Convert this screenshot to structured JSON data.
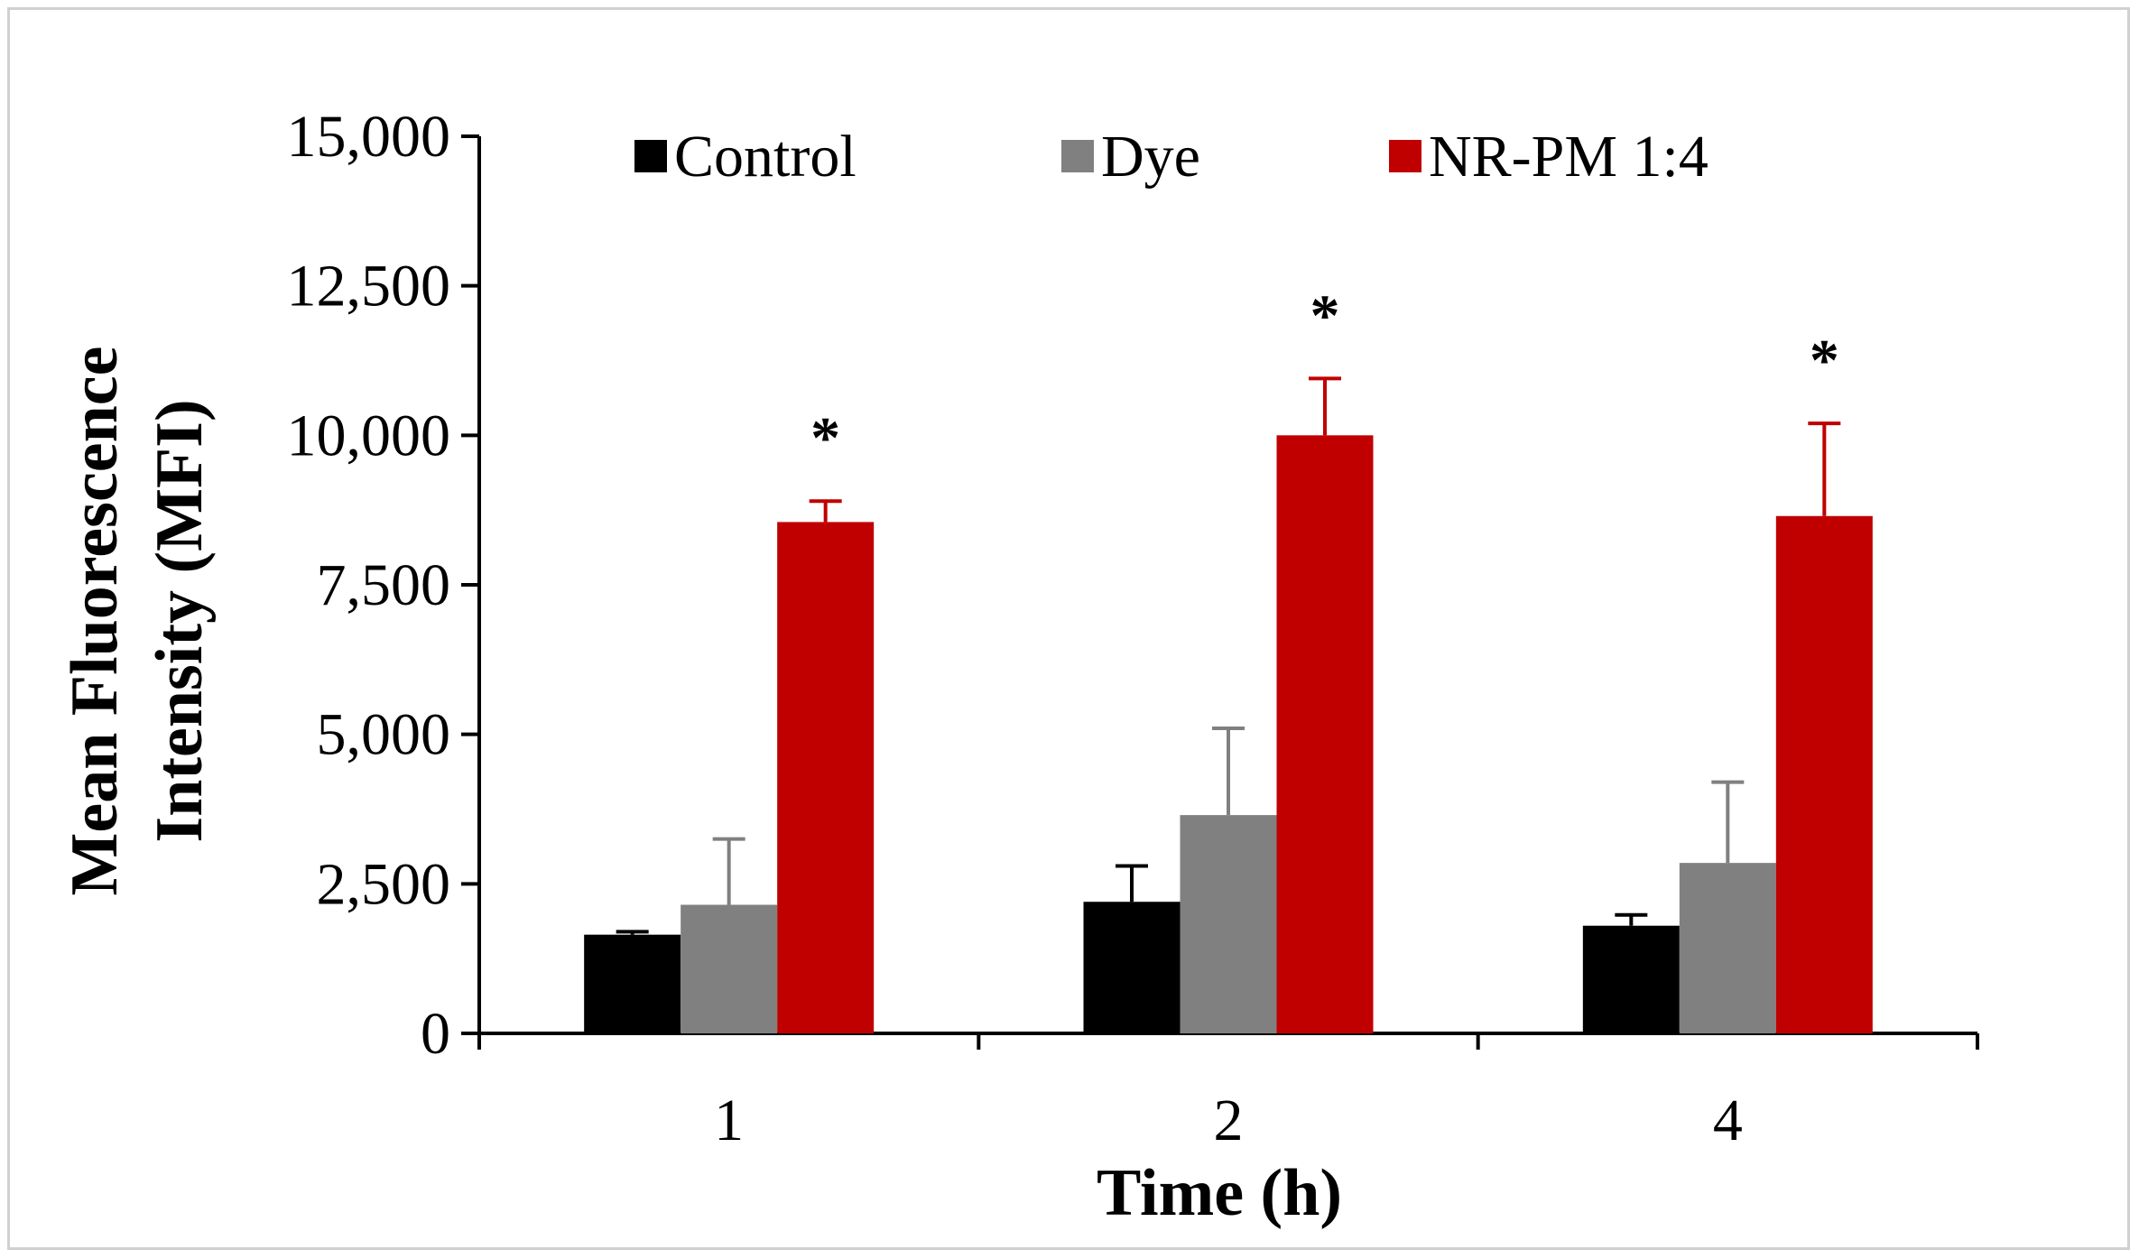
{
  "chart_data": {
    "type": "bar",
    "xlabel": "Time (h)",
    "ylabel": [
      "Mean  Fluorescence",
      "Intensity (MFI)"
    ],
    "categories": [
      "1",
      "2",
      "4"
    ],
    "ylim": [
      0,
      15000
    ],
    "yticks": [
      0,
      2500,
      5000,
      7500,
      10000,
      12500,
      15000
    ],
    "ytick_labels": [
      "0",
      "2,500",
      "5,000",
      "7,500",
      "10,000",
      "12,500",
      "15,000"
    ],
    "grid": false,
    "legend": "top",
    "series": [
      {
        "name": "Control",
        "color": "#000000",
        "values": [
          1650,
          2200,
          1800
        ],
        "errors": [
          50,
          600,
          180
        ]
      },
      {
        "name": "Dye",
        "color": "#808080",
        "values": [
          2150,
          3650,
          2850
        ],
        "errors": [
          1100,
          1450,
          1350
        ]
      },
      {
        "name": "NR-PM 1:4",
        "color": "#c00000",
        "values": [
          8550,
          10000,
          8650
        ],
        "errors": [
          350,
          950,
          1550
        ]
      }
    ],
    "annotations": [
      {
        "category": "1",
        "series": "NR-PM 1:4",
        "text": "*"
      },
      {
        "category": "2",
        "series": "NR-PM 1:4",
        "text": "*"
      },
      {
        "category": "4",
        "series": "NR-PM 1:4",
        "text": "*"
      }
    ]
  }
}
